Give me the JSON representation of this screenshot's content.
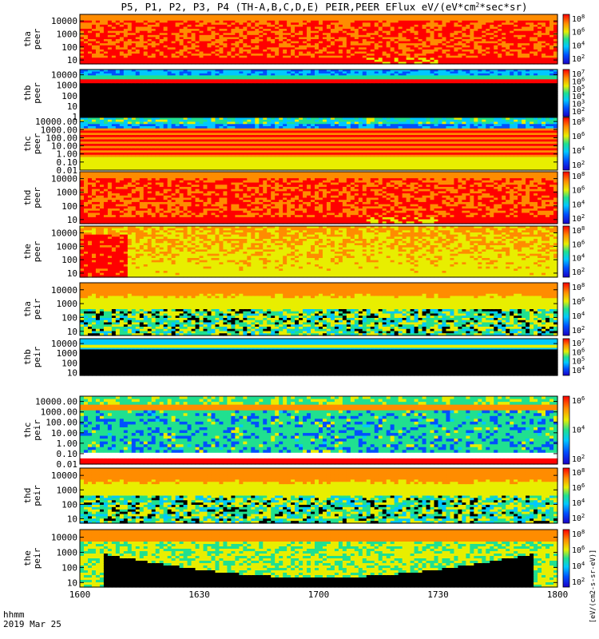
{
  "chart_data": {
    "type": "heatmap",
    "title": "P5, P1, P2, P3, P4 (TH-A,B,C,D,E) PEIR,PEER EFlux eV/(eV*cm",
    "title_super": "2",
    "title_end": "*sec*sr)",
    "x_title": "hhmm",
    "date": "2019 Mar 25",
    "x_ticks": [
      "1600",
      "1630",
      "1700",
      "1730",
      "1800"
    ],
    "x_range": [
      "16:00",
      "18:00"
    ],
    "colorbar_label": "[eV/(cm2-s-sr-eV)]",
    "colormap": [
      "#000000",
      "#1a00c8",
      "#0050ff",
      "#00c8ff",
      "#20e090",
      "#e8ee00",
      "#ff8c00",
      "#ff0000"
    ],
    "panels": [
      {
        "id": "tha-peer",
        "probe": "tha",
        "species": "peer",
        "y_ticks": [
          "10000",
          "1000",
          "100",
          "10"
        ],
        "y_range": [
          5,
          32000
        ],
        "cb_ticks": [
          "8",
          "6",
          "4",
          "2"
        ],
        "pattern": "high-red"
      },
      {
        "id": "thb-peer",
        "probe": "thb",
        "species": "peer",
        "y_ticks": [
          "10000",
          "1000",
          "100",
          "10",
          "1"
        ],
        "y_range": [
          1,
          32000
        ],
        "cb_ticks": [
          "7",
          "6",
          "5",
          "4",
          "3",
          "2"
        ],
        "pattern": "bands-black"
      },
      {
        "id": "thc-peer",
        "probe": "thc",
        "species": "peer",
        "y_ticks": [
          "10000.00",
          "1000.00",
          "100.00",
          "10.00",
          "1.00",
          "0.10",
          "0.01"
        ],
        "y_range": [
          0.01,
          32000
        ],
        "cb_ticks": [
          "8",
          "6",
          "4",
          "2"
        ],
        "pattern": "striped-thc"
      },
      {
        "id": "thd-peer",
        "probe": "thd",
        "species": "peer",
        "y_ticks": [
          "10000",
          "1000",
          "100",
          "10"
        ],
        "y_range": [
          5,
          32000
        ],
        "cb_ticks": [
          "8",
          "6",
          "4",
          "2"
        ],
        "pattern": "high-red"
      },
      {
        "id": "the-peer",
        "probe": "the",
        "species": "peer",
        "y_ticks": [
          "10000",
          "1000",
          "100",
          "10"
        ],
        "y_range": [
          5,
          32000
        ],
        "cb_ticks": [
          "8",
          "6",
          "4",
          "2"
        ],
        "pattern": "the-peer"
      },
      {
        "id": "tha-peir",
        "probe": "tha",
        "species": "peir",
        "y_ticks": [
          "10000",
          "1000",
          "100",
          "10"
        ],
        "y_range": [
          5,
          32000
        ],
        "cb_ticks": [
          "8",
          "6",
          "4",
          "2"
        ],
        "pattern": "ion"
      },
      {
        "id": "thb-peir",
        "probe": "thb",
        "species": "peir",
        "y_ticks": [
          "10000",
          "1000",
          "100",
          "10"
        ],
        "y_range": [
          5,
          32000
        ],
        "cb_ticks": [
          "7",
          "6",
          "5",
          "4"
        ],
        "pattern": "thb-ion"
      },
      {
        "id": "thc-peir",
        "probe": "thc",
        "species": "peir",
        "y_ticks": [
          "10000.00",
          "1000.00",
          "100.00",
          "10.00",
          "1.00",
          "0.10",
          "0.01"
        ],
        "y_range": [
          0.01,
          32000
        ],
        "cb_ticks": [
          "6",
          "4",
          "2"
        ],
        "pattern": "thc-ion"
      },
      {
        "id": "thd-peir",
        "probe": "thd",
        "species": "peir",
        "y_ticks": [
          "10000",
          "1000",
          "100",
          "10"
        ],
        "y_range": [
          5,
          32000
        ],
        "cb_ticks": [
          "8",
          "6",
          "4",
          "2"
        ],
        "pattern": "ion"
      },
      {
        "id": "the-peir",
        "probe": "the",
        "species": "peir",
        "y_ticks": [
          "10000",
          "1000",
          "100",
          "10"
        ],
        "y_range": [
          5,
          32000
        ],
        "cb_ticks": [
          "8",
          "6",
          "4",
          "2"
        ],
        "pattern": "the-ion"
      }
    ]
  }
}
